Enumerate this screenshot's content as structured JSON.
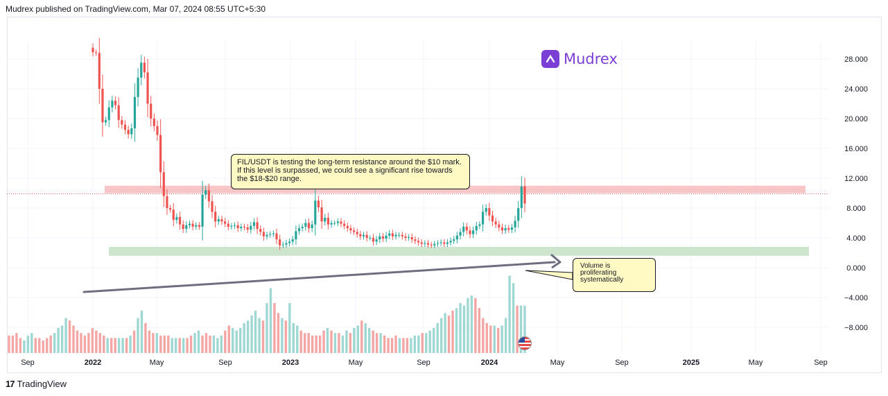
{
  "header": {
    "text": "Mudrex published on TradingView.com, Mar 07, 2024 08:55 UTC+5:30"
  },
  "brand": {
    "name": "Mudrex",
    "color": "#7b3fd6"
  },
  "footer": {
    "text": "TradingView",
    "logo_text": "17"
  },
  "annotations": {
    "resistance_note": "FIL/USDT is testing the long-term resistance around the $10 mark. If this level is surpassed, we could see a significant rise towards the $18-$20 range.",
    "volume_note": "Volume is proliferating systematically"
  },
  "colors": {
    "up": "#26a69a",
    "down": "#ef5350",
    "vol_up": "#9fd8d2",
    "vol_down": "#f4a6a4",
    "resistance_zone": "#f8c6c6",
    "support_zone": "#cde5cd",
    "trendline": "#6e6e80"
  },
  "chart_data": {
    "type": "candlestick",
    "symbol": "FIL/USDT",
    "y_ticks": [
      "28.000",
      "24.000",
      "20.000",
      "16.000",
      "12.000",
      "8.000",
      "4.000",
      "0.000",
      "−4.000",
      "−8.000"
    ],
    "x_ticks": [
      "Sep",
      "2022",
      "May",
      "Sep",
      "2023",
      "May",
      "Sep",
      "2024",
      "May",
      "Sep",
      "2025",
      "May",
      "Sep"
    ],
    "ylim": [
      -11.5,
      30.5
    ],
    "resistance_zone": [
      10.0,
      11.0
    ],
    "support_zone": [
      1.6,
      2.8
    ],
    "resistance_line": 9.9,
    "closes": [
      28.9,
      28.8,
      24.0,
      19.5,
      19.8,
      21.5,
      22.4,
      21.8,
      19.8,
      19.2,
      18.5,
      17.9,
      18.7,
      22.9,
      25.5,
      27.5,
      26.2,
      22.0,
      20.0,
      19.0,
      17.8,
      12.8,
      9.6,
      8.0,
      7.8,
      6.4,
      6.8,
      5.8,
      5.2,
      5.7,
      5.9,
      5.5,
      5.7,
      5.5,
      9.8,
      10.4,
      8.9,
      7.5,
      6.2,
      6.5,
      6.2,
      5.9,
      5.5,
      5.6,
      5.7,
      5.3,
      5.5,
      5.4,
      5.1,
      5.6,
      6.1,
      5.2,
      4.8,
      4.2,
      4.4,
      4.5,
      4.6,
      3.8,
      3.0,
      3.1,
      3.3,
      3.5,
      3.8,
      4.9,
      5.3,
      5.5,
      6.0,
      5.3,
      5.8,
      9.0,
      8.1,
      6.2,
      6.7,
      5.8,
      6.0,
      6.0,
      6.2,
      5.9,
      5.6,
      5.3,
      5.0,
      4.8,
      4.5,
      4.2,
      4.4,
      4.0,
      4.0,
      3.5,
      3.8,
      4.2,
      3.9,
      4.3,
      4.6,
      4.2,
      4.4,
      4.4,
      4.2,
      4.0,
      4.1,
      3.8,
      3.6,
      3.4,
      3.2,
      3.3,
      3.1,
      3.0,
      3.2,
      3.3,
      3.4,
      3.2,
      3.4,
      3.6,
      3.8,
      4.3,
      4.8,
      5.5,
      5.0,
      4.5,
      5.0,
      5.6,
      5.8,
      7.5,
      8.0,
      7.0,
      6.2,
      5.8,
      5.4,
      5.0,
      5.3,
      5.1,
      5.4,
      6.3,
      8.0,
      10.9,
      8.6
    ],
    "volumes": [
      0.35,
      0.35,
      0.4,
      0.3,
      0.25,
      0.35,
      0.4,
      0.3,
      0.3,
      0.25,
      0.3,
      0.35,
      0.4,
      0.5,
      0.55,
      0.7,
      0.65,
      0.55,
      0.45,
      0.4,
      0.35,
      0.4,
      0.5,
      0.45,
      0.4,
      0.35,
      0.3,
      0.3,
      0.3,
      0.3,
      0.3,
      0.3,
      0.35,
      0.45,
      0.7,
      0.85,
      0.6,
      0.45,
      0.4,
      0.4,
      0.35,
      0.35,
      0.35,
      0.3,
      0.3,
      0.3,
      0.3,
      0.3,
      0.35,
      0.4,
      0.45,
      0.35,
      0.4,
      0.35,
      0.35,
      0.3,
      0.35,
      0.45,
      0.55,
      0.5,
      0.45,
      0.5,
      0.6,
      0.65,
      0.75,
      0.85,
      0.7,
      0.65,
      1.0,
      1.3,
      1.0,
      0.8,
      0.7,
      0.65,
      1.0,
      0.6,
      0.55,
      0.45,
      0.4,
      0.4,
      0.35,
      0.35,
      0.35,
      0.45,
      0.5,
      0.45,
      0.4,
      0.4,
      0.35,
      0.45,
      0.4,
      0.5,
      0.55,
      0.65,
      0.6,
      0.5,
      0.45,
      0.4,
      0.4,
      0.35,
      0.3,
      0.3,
      0.35,
      0.3,
      0.3,
      0.3,
      0.3,
      0.35,
      0.35,
      0.4,
      0.4,
      0.45,
      0.5,
      0.6,
      0.7,
      0.8,
      0.75,
      0.85,
      0.9,
      1.0,
      0.95,
      1.1,
      1.15,
      1.1,
      0.9,
      0.7,
      0.6,
      0.55,
      0.55,
      0.5,
      0.55,
      0.7,
      1.55,
      1.4,
      0.95
    ]
  }
}
